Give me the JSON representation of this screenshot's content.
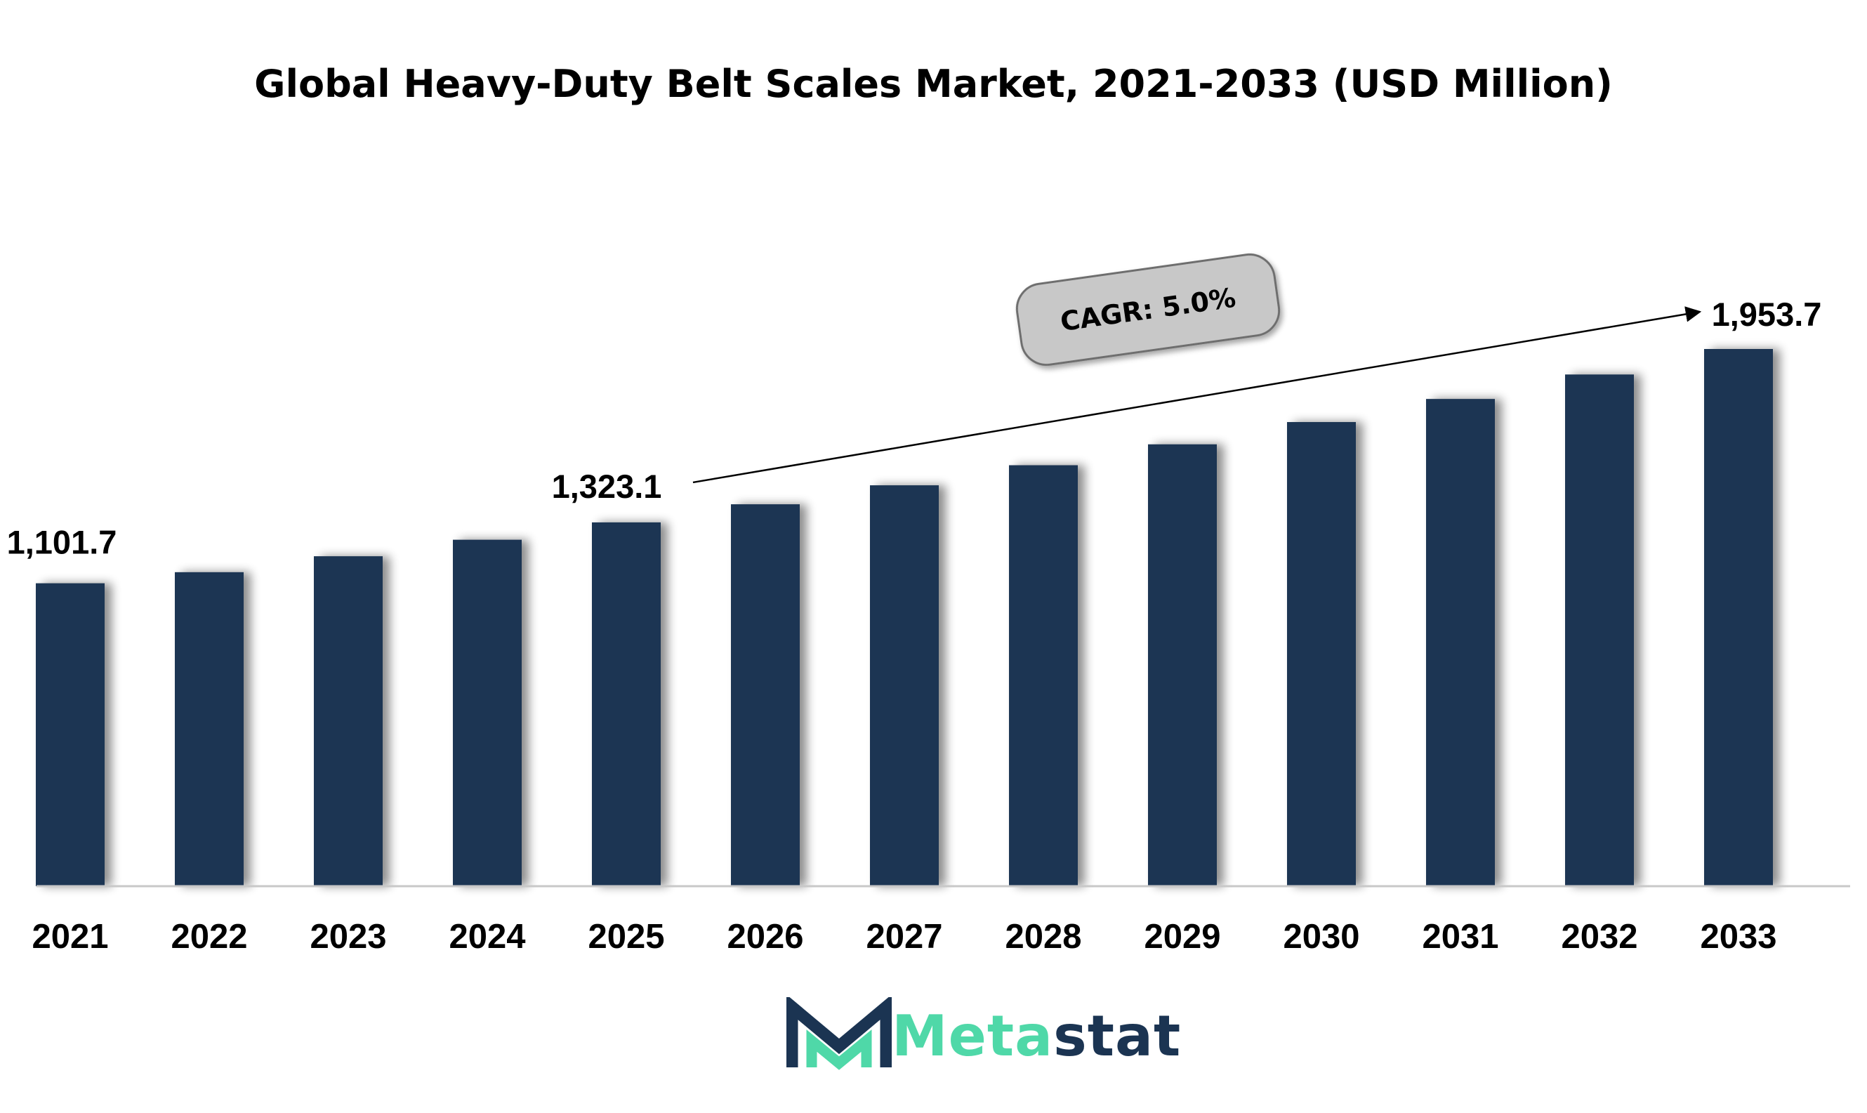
{
  "chart_data": {
    "type": "bar",
    "title": "Global Heavy-Duty Belt Scales Market, 2021-2033 (USD Million)",
    "xlabel": "",
    "ylabel": "",
    "categories": [
      "2021",
      "2022",
      "2023",
      "2024",
      "2025",
      "2026",
      "2027",
      "2028",
      "2029",
      "2030",
      "2031",
      "2032",
      "2033"
    ],
    "values": [
      1101.7,
      1142,
      1200,
      1260,
      1323.1,
      1389,
      1458,
      1531,
      1607,
      1688,
      1772,
      1861,
      1953.7
    ],
    "ylim": [
      0,
      2150
    ],
    "grid": false,
    "legend": "none",
    "data_labels": [
      {
        "category": "2021",
        "text": "1,101.7"
      },
      {
        "category": "2025",
        "text": "1,323.1"
      },
      {
        "category": "2033",
        "text": "1,953.7"
      }
    ],
    "annotation": {
      "text": "CAGR: 5.0%",
      "from": "2025",
      "to": "2033"
    },
    "colors": {
      "bar": "#1b3452",
      "axis": "#c8c8c8",
      "badge_fill": "#c8c8c8",
      "badge_stroke": "#6e6e6e"
    }
  },
  "brand": {
    "part1": "Meta",
    "part2": "stat",
    "accent": "#4fd8a8",
    "dark": "#1b3452"
  }
}
